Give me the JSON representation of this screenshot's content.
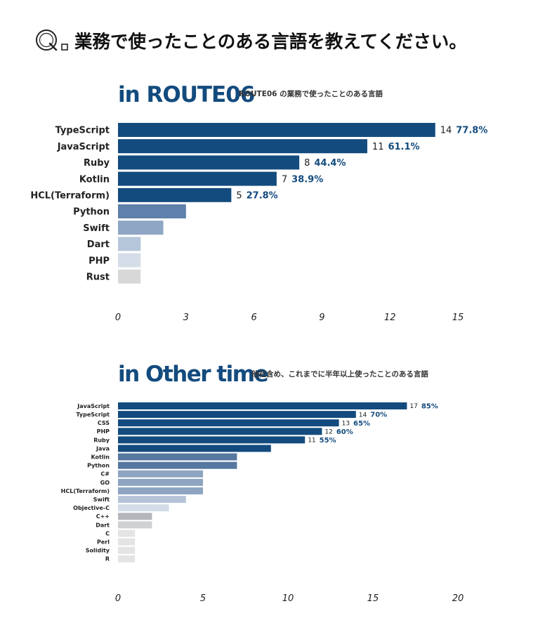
{
  "question": {
    "mark": "Q",
    "text": "業務で使ったことのある言語を教えてください。"
  },
  "chart_data": [
    {
      "type": "bar",
      "orientation": "horizontal",
      "title": "in ROUTE06",
      "subtitle": "ROUTE06 の業務で使ったことのある言語",
      "categories": [
        "TypeScript",
        "JavaScript",
        "Ruby",
        "Kotlin",
        "HCL(Terraform)",
        "Python",
        "Swift",
        "Dart",
        "PHP",
        "Rust"
      ],
      "values": [
        14,
        11,
        8,
        7,
        5,
        3,
        2,
        1,
        1,
        1
      ],
      "value_labels": [
        "14",
        "11",
        "8",
        "7",
        "5",
        null,
        null,
        null,
        null,
        null
      ],
      "percent_labels": [
        "77.8%",
        "61.1%",
        "44.4%",
        "38.9%",
        "27.8%",
        null,
        null,
        null,
        null,
        null
      ],
      "bar_colors": [
        "#134b7e",
        "#134b7e",
        "#134b7e",
        "#134b7e",
        "#134b7e",
        "#5e80aa",
        "#8fa6c4",
        "#b6c6da",
        "#d4dde8",
        "#d8d8d8"
      ],
      "xlim": [
        0,
        15
      ],
      "xticks": [
        "0",
        "3",
        "6",
        "9",
        "12",
        "15"
      ],
      "grid": false
    },
    {
      "type": "bar",
      "orientation": "horizontal",
      "title": "in Other time",
      "subtitle": "他社含め、これまでに半年以上使ったことのある言語",
      "categories": [
        "JavaScript",
        "TypeScript",
        "CSS",
        "PHP",
        "Ruby",
        "Java",
        "Kotlin",
        "Python",
        "C#",
        "GO",
        "HCL(Terraform)",
        "Swift",
        "Objective-C",
        "C++",
        "Dart",
        "C",
        "Perl",
        "Solidity",
        "R"
      ],
      "values": [
        17,
        14,
        13,
        12,
        11,
        9,
        7,
        7,
        5,
        5,
        5,
        4,
        3,
        2,
        2,
        1,
        1,
        1,
        1
      ],
      "value_labels": [
        "17",
        "14",
        "13",
        "12",
        "11",
        null,
        null,
        null,
        null,
        null,
        null,
        null,
        null,
        null,
        null,
        null,
        null,
        null,
        null
      ],
      "percent_labels": [
        "85%",
        "70%",
        "65%",
        "60%",
        "55%",
        null,
        null,
        null,
        null,
        null,
        null,
        null,
        null,
        null,
        null,
        null,
        null,
        null,
        null
      ],
      "bar_colors": [
        "#134b7e",
        "#134b7e",
        "#134b7e",
        "#134b7e",
        "#134b7e",
        "#134b7e",
        "#56779f",
        "#56779f",
        "#8ea4c1",
        "#8ea4c1",
        "#8ea4c1",
        "#b5c4d8",
        "#d3dce7",
        "#b3b6ba",
        "#d0d1d3",
        "#e4e4e4",
        "#e4e4e4",
        "#e4e4e4",
        "#e4e4e4"
      ],
      "xlim": [
        0,
        20
      ],
      "xticks": [
        "0",
        "5",
        "10",
        "15",
        "20"
      ],
      "grid": false
    }
  ]
}
